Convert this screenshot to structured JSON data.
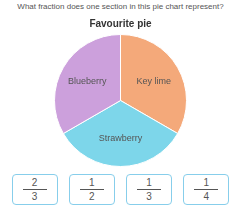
{
  "chart_data": {
    "type": "pie",
    "title": "Favourite pie",
    "subtitle": "What fraction does one section in this pie chart represent?",
    "categories": [
      "Key lime",
      "Strawberry",
      "Blueberry"
    ],
    "values": [
      0.3333,
      0.3333,
      0.3334
    ],
    "colors": [
      "#F4A97A",
      "#7DD6EA",
      "#CCA0DC"
    ],
    "legend": false,
    "annotations": [
      {
        "num": "2",
        "den": "3"
      },
      {
        "num": "1",
        "den": "2"
      },
      {
        "num": "1",
        "den": "3"
      },
      {
        "num": "1",
        "den": "4"
      }
    ]
  }
}
